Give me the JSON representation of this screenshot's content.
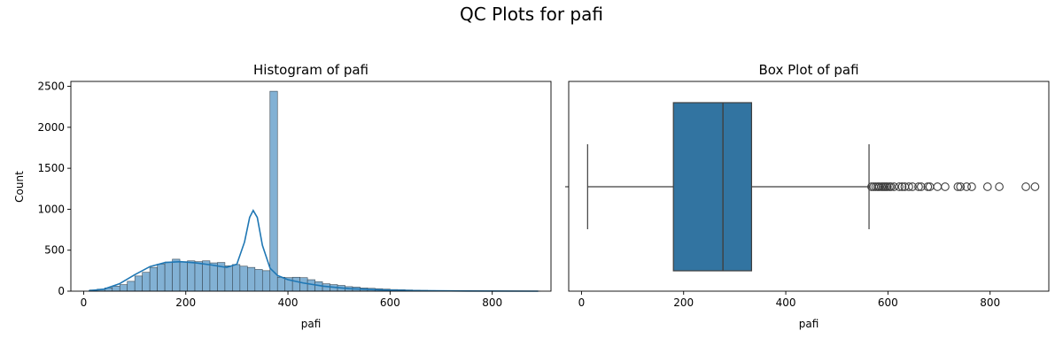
{
  "figure_title": "QC Plots for pafi",
  "colors": {
    "hist_fill": "#82b1d4",
    "hist_edge": "#3a4a56",
    "kde_line": "#1f77b4",
    "box_fill": "#3274a1",
    "box_edge": "#3f3f3f"
  },
  "chart_data": [
    {
      "type": "bar",
      "subtype": "histogram-with-kde",
      "title": "Histogram of pafi",
      "xlabel": "pafi",
      "ylabel": "Count",
      "xlim": [
        -25,
        915
      ],
      "ylim": [
        0,
        2560
      ],
      "xticks": [
        0,
        200,
        400,
        600,
        800
      ],
      "yticks": [
        0,
        500,
        1000,
        1500,
        2000,
        2500
      ],
      "bin_start": 12,
      "bin_width": 14.7,
      "values": [
        15,
        25,
        40,
        60,
        80,
        120,
        185,
        230,
        290,
        330,
        355,
        390,
        360,
        370,
        360,
        370,
        345,
        350,
        310,
        325,
        305,
        290,
        265,
        250,
        2440,
        170,
        165,
        170,
        165,
        140,
        115,
        90,
        80,
        70,
        55,
        50,
        40,
        35,
        30,
        25,
        20,
        18,
        15,
        12,
        10,
        8,
        7,
        6,
        5,
        4,
        3,
        3,
        2,
        2,
        2,
        1,
        1,
        1,
        1,
        1
      ],
      "kde": {
        "x": [
          10,
          40,
          70,
          100,
          130,
          160,
          190,
          220,
          250,
          280,
          300,
          315,
          325,
          332,
          340,
          350,
          365,
          380,
          400,
          430,
          470,
          520,
          580,
          650,
          750,
          890
        ],
        "y": [
          5,
          25,
          90,
          200,
          300,
          350,
          360,
          345,
          320,
          290,
          330,
          600,
          900,
          985,
          900,
          560,
          280,
          190,
          140,
          100,
          60,
          30,
          15,
          6,
          2,
          0
        ]
      }
    },
    {
      "type": "box",
      "title": "Box Plot of pafi",
      "xlabel": "pafi",
      "xlim": [
        -25,
        915
      ],
      "xticks": [
        0,
        200,
        400,
        600,
        800
      ],
      "whisker_low": 12,
      "q1": 180,
      "median": 277,
      "q3": 333,
      "whisker_high": 563,
      "outliers": [
        568,
        572,
        576,
        580,
        583,
        587,
        590,
        593,
        596,
        599,
        603,
        606,
        612,
        622,
        628,
        633,
        641,
        648,
        660,
        665,
        678,
        682,
        697,
        712,
        737,
        742,
        754,
        764,
        795,
        818,
        870,
        888
      ]
    }
  ]
}
